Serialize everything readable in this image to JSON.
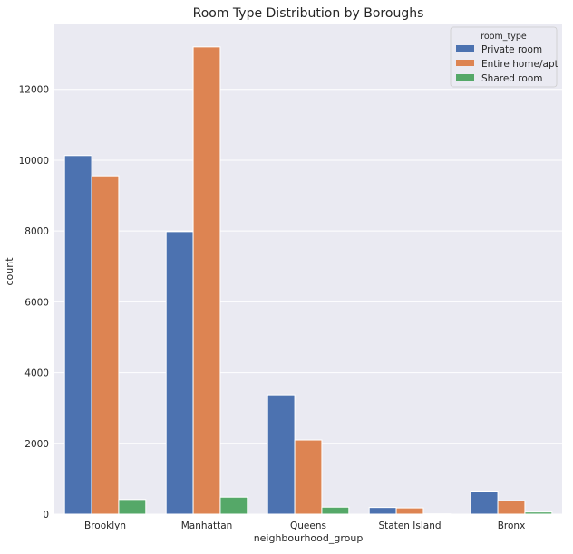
{
  "chart_data": {
    "type": "bar",
    "title": "Room Type Distribution by Boroughs",
    "xlabel": "neighbourhood_group",
    "ylabel": "count",
    "categories": [
      "Brooklyn",
      "Manhattan",
      "Queens",
      "Staten Island",
      "Bronx"
    ],
    "series": [
      {
        "name": "Private room",
        "color": "#4c72b0",
        "values": [
          10132,
          7982,
          3372,
          188,
          652
        ]
      },
      {
        "name": "Entire home/apt",
        "color": "#dd8452",
        "values": [
          9559,
          13199,
          2096,
          176,
          379
        ]
      },
      {
        "name": "Shared room",
        "color": "#55a868",
        "values": [
          413,
          480,
          198,
          9,
          60
        ]
      }
    ],
    "ylim": [
      0,
      13860
    ],
    "yticks": [
      0,
      2000,
      4000,
      6000,
      8000,
      10000,
      12000
    ],
    "grid": true,
    "background": "#eaeaf2",
    "legend": {
      "title": "room_type",
      "position": "top-right"
    }
  }
}
